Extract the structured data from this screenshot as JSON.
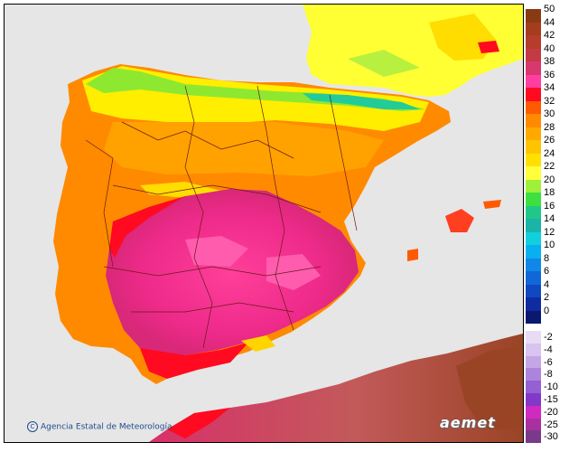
{
  "credit": {
    "symbol": "C",
    "text": "Agencia Estatal de Meteorología"
  },
  "logo": {
    "text": "aemet"
  },
  "map": {
    "sea_color": "#e6e6e6",
    "outside_land_color": "#e6e6e6",
    "region_colors": {
      "north_cool": "#ffee00",
      "mountain_green": "#8ee830",
      "mountain_teal": "#22cc99",
      "central_orange": "#ffa200",
      "west_coast": "#ff7800",
      "south_magenta": "#ee2a8a",
      "south_pink": "#ff3f9a",
      "hot_red": "#ff0a20",
      "france_yellow": "#ffff33",
      "africa_base": "#cc5c5c",
      "africa_hot": "#a4472a",
      "border": "#6a1a1a"
    }
  },
  "legend": {
    "positive": [
      {
        "label": "50",
        "color": "#8a3a12"
      },
      {
        "label": "44",
        "color": "#a43c1e"
      },
      {
        "label": "42",
        "color": "#b63c2c"
      },
      {
        "label": "40",
        "color": "#c43a44"
      },
      {
        "label": "38",
        "color": "#d8386e"
      },
      {
        "label": "36",
        "color": "#ff3fa0"
      },
      {
        "label": "34",
        "color": "#ff0a20"
      },
      {
        "label": "32",
        "color": "#ff5a00"
      },
      {
        "label": "30",
        "color": "#ff8a00"
      },
      {
        "label": "28",
        "color": "#ffa800"
      },
      {
        "label": "26",
        "color": "#ffc400"
      },
      {
        "label": "24",
        "color": "#ffe000"
      },
      {
        "label": "22",
        "color": "#ffff3a"
      },
      {
        "label": "20",
        "color": "#9ef03a"
      },
      {
        "label": "18",
        "color": "#3ee040"
      },
      {
        "label": "16",
        "color": "#20c888"
      },
      {
        "label": "14",
        "color": "#1ab4a8"
      },
      {
        "label": "12",
        "color": "#10d0e0"
      },
      {
        "label": "10",
        "color": "#08b0f0"
      },
      {
        "label": "8",
        "color": "#1088e8"
      },
      {
        "label": "6",
        "color": "#1068d8"
      },
      {
        "label": "4",
        "color": "#1048c0"
      },
      {
        "label": "2",
        "color": "#102aa0"
      },
      {
        "label": "0",
        "color": "#0a1870"
      }
    ],
    "negative": [
      {
        "label": "-2",
        "color": "#e8dcf4"
      },
      {
        "label": "-4",
        "color": "#d8c4ee"
      },
      {
        "label": "-6",
        "color": "#c4a6e6"
      },
      {
        "label": "-8",
        "color": "#ac84dc"
      },
      {
        "label": "-10",
        "color": "#9460d4"
      },
      {
        "label": "-15",
        "color": "#8238c8"
      },
      {
        "label": "-20",
        "color": "#d02ac0"
      },
      {
        "label": "-25",
        "color": "#a830a0"
      },
      {
        "label": "-30",
        "color": "#7a3a8c"
      }
    ]
  }
}
